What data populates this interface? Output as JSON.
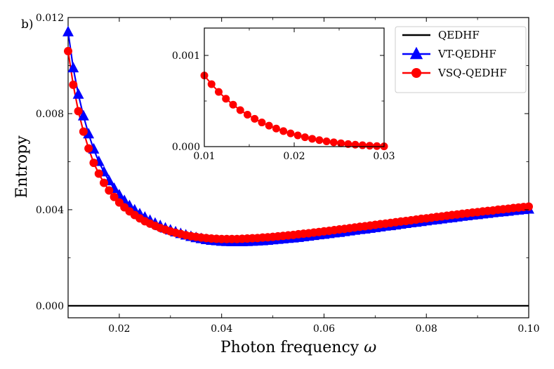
{
  "panel_label": "b)",
  "chart_data": [
    {
      "type": "line",
      "xlabel": "Photon frequency ",
      "xlabel_symbol": "ω",
      "ylabel": "Entropy",
      "xlim": [
        0.01,
        0.1
      ],
      "ylim": [
        -0.0005,
        0.012
      ],
      "xticks": [
        0.02,
        0.04,
        0.06,
        0.08,
        0.1
      ],
      "xtick_labels": [
        "0.02",
        "0.04",
        "0.06",
        "0.08",
        "0.10"
      ],
      "yticks": [
        0.0,
        0.004,
        0.008,
        0.012
      ],
      "ytick_labels": [
        "0.000",
        "0.004",
        "0.008",
        "0.012"
      ],
      "grid": false,
      "legend": "top-right",
      "series": [
        {
          "name": "QEDHF",
          "color": "#000000",
          "marker": "none",
          "x": [
            0.01,
            0.1
          ],
          "y": [
            0.0,
            0.0
          ]
        },
        {
          "name": "VT-QEDHF",
          "color": "#0000ff",
          "marker": "triangle",
          "x": [
            0.01,
            0.011,
            0.012,
            0.013,
            0.014,
            0.015,
            0.016,
            0.017,
            0.018,
            0.019,
            0.02,
            0.021,
            0.022,
            0.023,
            0.024,
            0.025,
            0.026,
            0.027,
            0.028,
            0.029,
            0.03,
            0.031,
            0.032,
            0.033,
            0.034,
            0.035,
            0.036,
            0.037,
            0.038,
            0.039,
            0.04,
            0.041,
            0.042,
            0.043,
            0.044,
            0.045,
            0.046,
            0.047,
            0.048,
            0.049,
            0.05,
            0.051,
            0.052,
            0.053,
            0.054,
            0.055,
            0.056,
            0.057,
            0.058,
            0.059,
            0.06,
            0.061,
            0.062,
            0.063,
            0.064,
            0.065,
            0.066,
            0.067,
            0.068,
            0.069,
            0.07,
            0.071,
            0.072,
            0.073,
            0.074,
            0.075,
            0.076,
            0.077,
            0.078,
            0.079,
            0.08,
            0.081,
            0.082,
            0.083,
            0.084,
            0.085,
            0.086,
            0.087,
            0.088,
            0.089,
            0.09,
            0.091,
            0.092,
            0.093,
            0.094,
            0.095,
            0.096,
            0.097,
            0.098,
            0.099,
            0.1
          ],
          "y": [
            0.0114,
            0.0099,
            0.0088,
            0.0079,
            0.00715,
            0.00652,
            0.006,
            0.00557,
            0.0052,
            0.00488,
            0.00461,
            0.00437,
            0.00416,
            0.00398,
            0.00382,
            0.00368,
            0.00355,
            0.00343,
            0.00333,
            0.00323,
            0.00315,
            0.00307,
            0.003,
            0.00294,
            0.00288,
            0.00283,
            0.00279,
            0.00275,
            0.00272,
            0.0027,
            0.00268,
            0.00267,
            0.00266,
            0.00266,
            0.00266,
            0.00267,
            0.00268,
            0.00269,
            0.0027,
            0.00272,
            0.00274,
            0.00276,
            0.00278,
            0.0028,
            0.00282,
            0.00284,
            0.00287,
            0.00289,
            0.00292,
            0.00295,
            0.00297,
            0.003,
            0.00303,
            0.00305,
            0.00308,
            0.00311,
            0.00314,
            0.00317,
            0.00319,
            0.00322,
            0.00325,
            0.00328,
            0.00331,
            0.00333,
            0.00336,
            0.00339,
            0.00342,
            0.00345,
            0.00347,
            0.0035,
            0.00353,
            0.00356,
            0.00358,
            0.00361,
            0.00364,
            0.00366,
            0.00369,
            0.00372,
            0.00374,
            0.00377,
            0.00379,
            0.00382,
            0.00384,
            0.00387,
            0.00389,
            0.00391,
            0.00393,
            0.00396,
            0.00398,
            0.004,
            0.00402
          ]
        },
        {
          "name": "VSQ-QEDHF",
          "color": "#ff0000",
          "marker": "circle",
          "x": [
            0.01,
            0.011,
            0.012,
            0.013,
            0.014,
            0.015,
            0.016,
            0.017,
            0.018,
            0.019,
            0.02,
            0.021,
            0.022,
            0.023,
            0.024,
            0.025,
            0.026,
            0.027,
            0.028,
            0.029,
            0.03,
            0.031,
            0.032,
            0.033,
            0.034,
            0.035,
            0.036,
            0.037,
            0.038,
            0.039,
            0.04,
            0.041,
            0.042,
            0.043,
            0.044,
            0.045,
            0.046,
            0.047,
            0.048,
            0.049,
            0.05,
            0.051,
            0.052,
            0.053,
            0.054,
            0.055,
            0.056,
            0.057,
            0.058,
            0.059,
            0.06,
            0.061,
            0.062,
            0.063,
            0.064,
            0.065,
            0.066,
            0.067,
            0.068,
            0.069,
            0.07,
            0.071,
            0.072,
            0.073,
            0.074,
            0.075,
            0.076,
            0.077,
            0.078,
            0.079,
            0.08,
            0.081,
            0.082,
            0.083,
            0.084,
            0.085,
            0.086,
            0.087,
            0.088,
            0.089,
            0.09,
            0.091,
            0.092,
            0.093,
            0.094,
            0.095,
            0.096,
            0.097,
            0.098,
            0.099,
            0.1
          ],
          "y": [
            0.0106,
            0.0092,
            0.0081,
            0.00725,
            0.00655,
            0.00595,
            0.0055,
            0.00512,
            0.0048,
            0.00453,
            0.0043,
            0.0041,
            0.00393,
            0.00378,
            0.00364,
            0.00352,
            0.00342,
            0.00333,
            0.00324,
            0.00317,
            0.0031,
            0.00304,
            0.00299,
            0.00294,
            0.0029,
            0.00287,
            0.00284,
            0.00282,
            0.0028,
            0.00279,
            0.00278,
            0.00278,
            0.00278,
            0.00278,
            0.00279,
            0.0028,
            0.00281,
            0.00282,
            0.00284,
            0.00285,
            0.00287,
            0.00289,
            0.00291,
            0.00293,
            0.00295,
            0.00298,
            0.003,
            0.00302,
            0.00305,
            0.00307,
            0.0031,
            0.00312,
            0.00315,
            0.00318,
            0.0032,
            0.00323,
            0.00326,
            0.00329,
            0.00331,
            0.00334,
            0.00337,
            0.0034,
            0.00342,
            0.00345,
            0.00348,
            0.00351,
            0.00353,
            0.00356,
            0.00359,
            0.00362,
            0.00364,
            0.00367,
            0.0037,
            0.00372,
            0.00375,
            0.00378,
            0.0038,
            0.00383,
            0.00385,
            0.00388,
            0.0039,
            0.00393,
            0.00395,
            0.00397,
            0.004,
            0.00402,
            0.00404,
            0.00407,
            0.00409,
            0.00411,
            0.00413
          ]
        }
      ]
    },
    {
      "type": "line",
      "role": "inset",
      "xlim": [
        0.01,
        0.03
      ],
      "ylim": [
        0.0,
        0.0013
      ],
      "xticks": [
        0.01,
        0.02,
        0.03
      ],
      "xtick_labels": [
        "0.01",
        "0.02",
        "0.03"
      ],
      "yticks": [
        0.0,
        0.001
      ],
      "ytick_labels": [
        "0.000",
        "0.001"
      ],
      "series": [
        {
          "name": "VSQ-QEDHF",
          "color": "#ff0000",
          "marker": "circle",
          "x": [
            0.01,
            0.0108,
            0.0116,
            0.0124,
            0.0132,
            0.014,
            0.0148,
            0.0156,
            0.0164,
            0.0172,
            0.018,
            0.0188,
            0.0196,
            0.0204,
            0.0212,
            0.022,
            0.0228,
            0.0236,
            0.0244,
            0.0252,
            0.026,
            0.0268,
            0.0276,
            0.0284,
            0.0292,
            0.03
          ],
          "y": [
            0.00078,
            0.000685,
            0.0006,
            0.000525,
            0.00046,
            0.0004,
            0.00035,
            0.000305,
            0.000265,
            0.00023,
            0.000198,
            0.00017,
            0.000145,
            0.000123,
            0.000103,
            8.6e-05,
            7.1e-05,
            5.8e-05,
            4.7e-05,
            3.7e-05,
            2.8e-05,
            2.1e-05,
            1.5e-05,
            1e-05,
            6e-06,
            3e-06
          ]
        }
      ]
    }
  ]
}
